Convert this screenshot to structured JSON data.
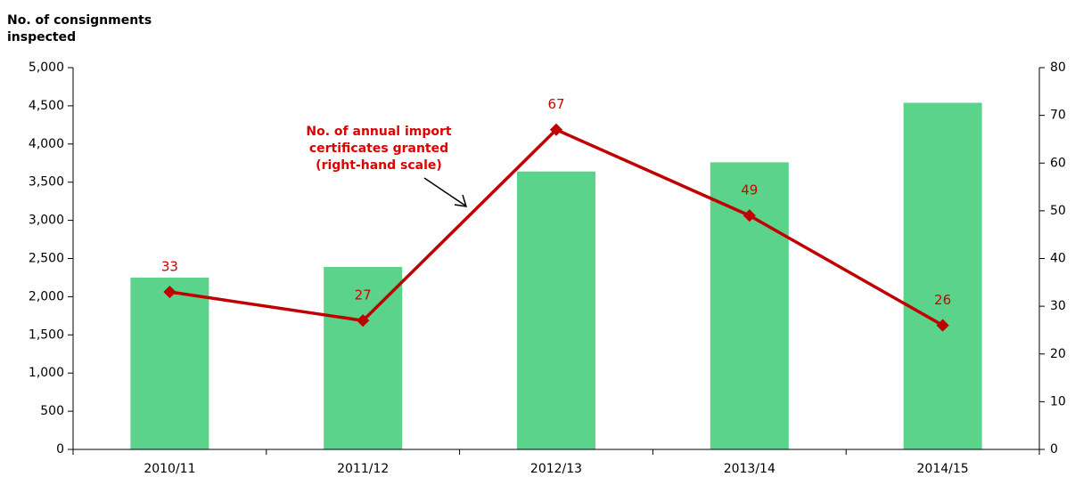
{
  "chart_data": {
    "type": "bar",
    "ylabel": [
      "No. of consignments",
      "inspected"
    ],
    "annotation": [
      "No. of annual import",
      "certificates granted",
      "(right-hand scale)"
    ],
    "categories": [
      "2010/11",
      "2011/12",
      "2012/13",
      "2013/14",
      "2014/15"
    ],
    "series": [
      {
        "name": "Consignments inspected",
        "type": "bar",
        "color": "#5cd38b",
        "values": [
          2250,
          2390,
          3640,
          3760,
          4540
        ]
      },
      {
        "name": "Annual import certificates granted",
        "type": "line",
        "axis": "y2",
        "color": "#c00000",
        "values": [
          33,
          27,
          67,
          49,
          26
        ]
      }
    ],
    "ylim": [
      0,
      5000
    ],
    "yticks": [
      0,
      500,
      {
        "value": 1000,
        "label": "1,000"
      },
      {
        "value": 1500,
        "label": "1,500"
      },
      {
        "value": 2000,
        "label": "2,000"
      },
      {
        "value": 2500,
        "label": "2,500"
      },
      {
        "value": 3000,
        "label": "3,000"
      },
      {
        "value": 3500,
        "label": "3,500"
      },
      {
        "value": 4000,
        "label": "4,000"
      },
      {
        "value": 4500,
        "label": "4,500"
      },
      {
        "value": 5000,
        "label": "5,000"
      }
    ],
    "y2lim": [
      0,
      80
    ],
    "y2ticks": [
      0,
      10,
      20,
      30,
      40,
      50,
      60,
      70,
      80
    ]
  }
}
